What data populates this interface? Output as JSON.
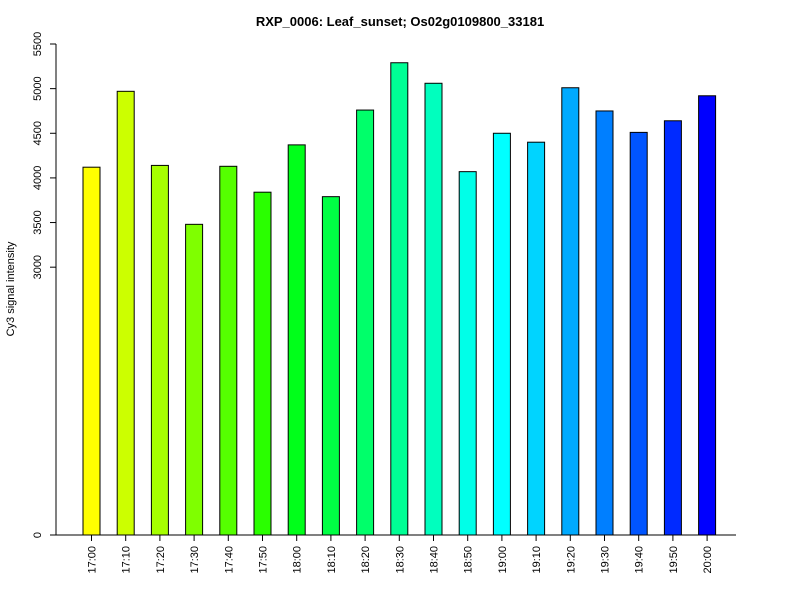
{
  "chart_data": {
    "type": "bar",
    "title": "RXP_0006: Leaf_sunset; Os02g0109800_33181",
    "xlabel": "",
    "ylabel": "Cy3 signal intensity",
    "ylim": [
      0,
      5500
    ],
    "yticks": [
      "0",
      "3000",
      "3500",
      "4000",
      "4500",
      "5000",
      "5500"
    ],
    "ytick_values": [
      0,
      3000,
      3500,
      4000,
      4500,
      5000,
      5500
    ],
    "categories": [
      "17:00",
      "17:10",
      "17:20",
      "17:30",
      "17:40",
      "17:50",
      "18:00",
      "18:10",
      "18:20",
      "18:30",
      "18:40",
      "18:50",
      "19:00",
      "19:10",
      "19:20",
      "19:30",
      "19:40",
      "19:50",
      "20:00"
    ],
    "values": [
      4120,
      4970,
      4140,
      3480,
      4130,
      3840,
      4370,
      3790,
      4760,
      5290,
      5060,
      4070,
      4500,
      4400,
      5010,
      4750,
      4510,
      4640,
      4920
    ],
    "colors": [
      "#FFFF00",
      "#CCFF00",
      "#A6FF00",
      "#7FFF00",
      "#55FF00",
      "#2AFF00",
      "#00FF1A",
      "#00FF44",
      "#00FF6A",
      "#00FF95",
      "#00FFBE",
      "#00FFE8",
      "#00FFFF",
      "#00D4FF",
      "#00AAFF",
      "#007FFF",
      "#0055FF",
      "#002AFF",
      "#0000FF"
    ],
    "grid": false,
    "legend": "none"
  }
}
